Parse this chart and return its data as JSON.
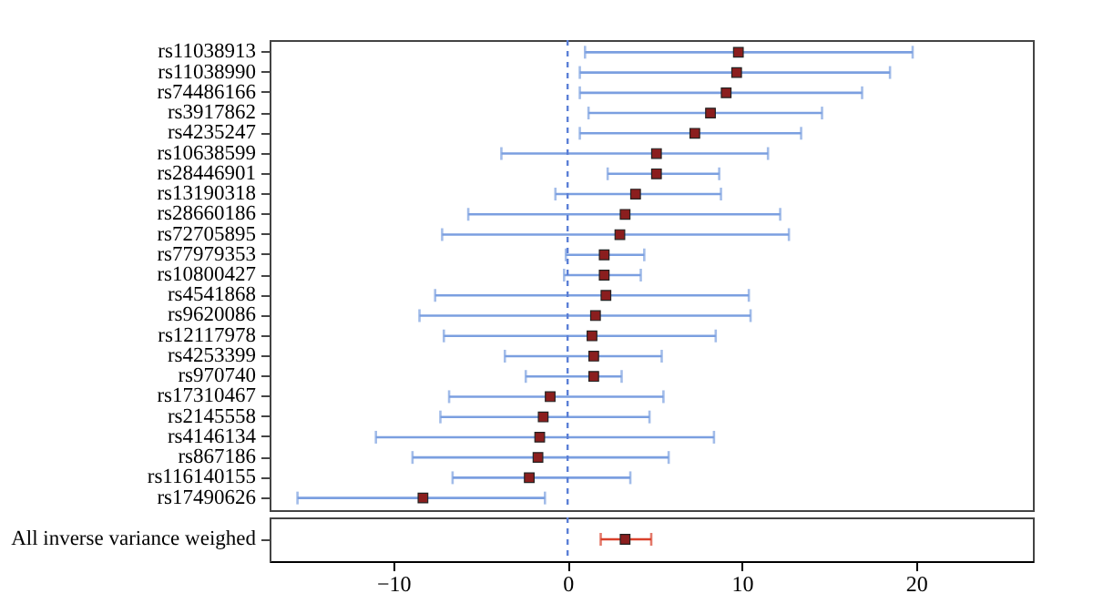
{
  "chart_data": [
    {
      "type": "scatter",
      "orientation": "horizontal",
      "marker": "square",
      "tick_labels": "y",
      "grid": false,
      "categories": [
        "rs11038913",
        "rs11038990",
        "rs74486166",
        "rs3917862",
        "rs4235247",
        "rs10638599",
        "rs28446901",
        "rs13190318",
        "rs28660186",
        "rs72705895",
        "rs77979353",
        "rs10800427",
        "rs4541868",
        "rs9620086",
        "rs12117978",
        "rs4253399",
        "rs970740",
        "rs17310467",
        "rs2145558",
        "rs4146134",
        "rs867186",
        "rs116140155",
        "rs17490626"
      ],
      "xlim": [
        -17.1,
        26.7
      ],
      "series": [
        {
          "color": "#8b1e1e",
          "values": [
            9.8,
            9.7,
            9.1,
            8.2,
            7.3,
            5.1,
            5.1,
            3.9,
            3.3,
            3.0,
            2.1,
            2.1,
            2.2,
            1.6,
            1.4,
            1.5,
            1.5,
            -1.0,
            -1.4,
            -1.6,
            -1.7,
            -2.2,
            -8.3
          ],
          "errors": [
            [
              1.0,
              19.8
            ],
            [
              0.7,
              18.5
            ],
            [
              0.7,
              16.9
            ],
            [
              1.2,
              14.6
            ],
            [
              0.7,
              13.4
            ],
            [
              -3.8,
              11.5
            ],
            [
              2.3,
              8.7
            ],
            [
              -0.7,
              8.8
            ],
            [
              -5.7,
              12.2
            ],
            [
              -7.2,
              12.7
            ],
            [
              -0.1,
              4.4
            ],
            [
              -0.2,
              4.2
            ],
            [
              -7.6,
              10.4
            ],
            [
              -8.5,
              10.5
            ],
            [
              -7.1,
              8.5
            ],
            [
              -3.6,
              5.4
            ],
            [
              -2.4,
              3.1
            ],
            [
              -6.8,
              5.5
            ],
            [
              -7.3,
              4.7
            ],
            [
              -11.0,
              8.4
            ],
            [
              -8.9,
              5.8
            ],
            [
              -6.6,
              3.6
            ],
            [
              -15.5,
              -1.3
            ]
          ]
        }
      ],
      "ref_lines": [
        {
          "axis": "x",
          "value": 0,
          "color": "#5b7fd6",
          "line_style": "dashed"
        }
      ]
    },
    {
      "type": "scatter",
      "orientation": "horizontal",
      "marker": "square",
      "grid": false,
      "categories": [
        "All inverse variance weighed"
      ],
      "xlim": [
        -17.1,
        26.7
      ],
      "xticks": [
        -10,
        0,
        10,
        20
      ],
      "series": [
        {
          "color": "#8b1e1e",
          "values": [
            3.3
          ],
          "errors": [
            [
              1.9,
              4.8
            ]
          ]
        }
      ],
      "ref_lines": [
        {
          "axis": "x",
          "value": 0,
          "color": "#5b7fd6",
          "line_style": "dashed"
        }
      ]
    }
  ]
}
